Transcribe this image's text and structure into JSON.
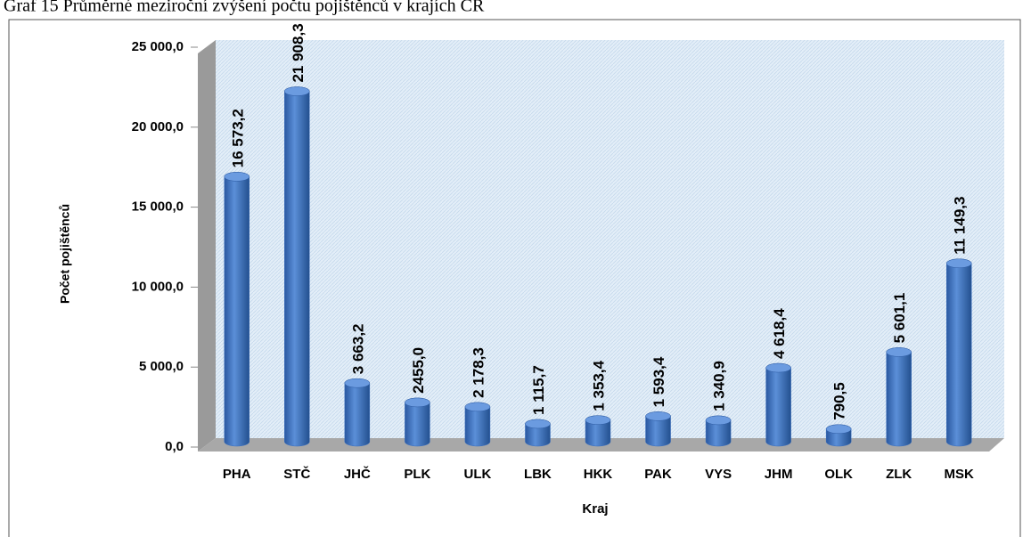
{
  "chart_data": {
    "type": "bar",
    "title": "Graf 15 Průměrné meziroční zvýšení počtu pojištěnců v krajích ČR",
    "x_label": "Kraj",
    "y_label": "Počet pojištěnců",
    "categories": [
      "PHA",
      "STČ",
      "JHČ",
      "PLK",
      "ULK",
      "LBK",
      "HKK",
      "PAK",
      "VYS",
      "JHM",
      "OLK",
      "ZLK",
      "MSK"
    ],
    "values": [
      16573.2,
      21908.3,
      3663.2,
      2455.0,
      2178.3,
      1115.7,
      1353.4,
      1593.4,
      1340.9,
      4618.4,
      790.5,
      5601.1,
      11149.3
    ],
    "value_labels": [
      "16 573,2",
      "21 908,3",
      "3 663,2",
      "2455,0",
      "2 178,3",
      "1 115,7",
      "1 353,4",
      "1 593,4",
      "1 340,9",
      "4 618,4",
      "790,5",
      "5 601,1",
      "11 149,3"
    ],
    "color": "#3a6fc0",
    "ylim": [
      0,
      25000
    ],
    "yticks": [
      {
        "value": 0,
        "label": "0,0"
      },
      {
        "value": 5000,
        "label": "5 000,0"
      },
      {
        "value": 10000,
        "label": "10 000,0"
      },
      {
        "value": 15000,
        "label": "15 000,0"
      },
      {
        "value": 20000,
        "label": "20 000,0"
      },
      {
        "value": 25000,
        "label": "25 000,0"
      }
    ],
    "grid": false
  }
}
